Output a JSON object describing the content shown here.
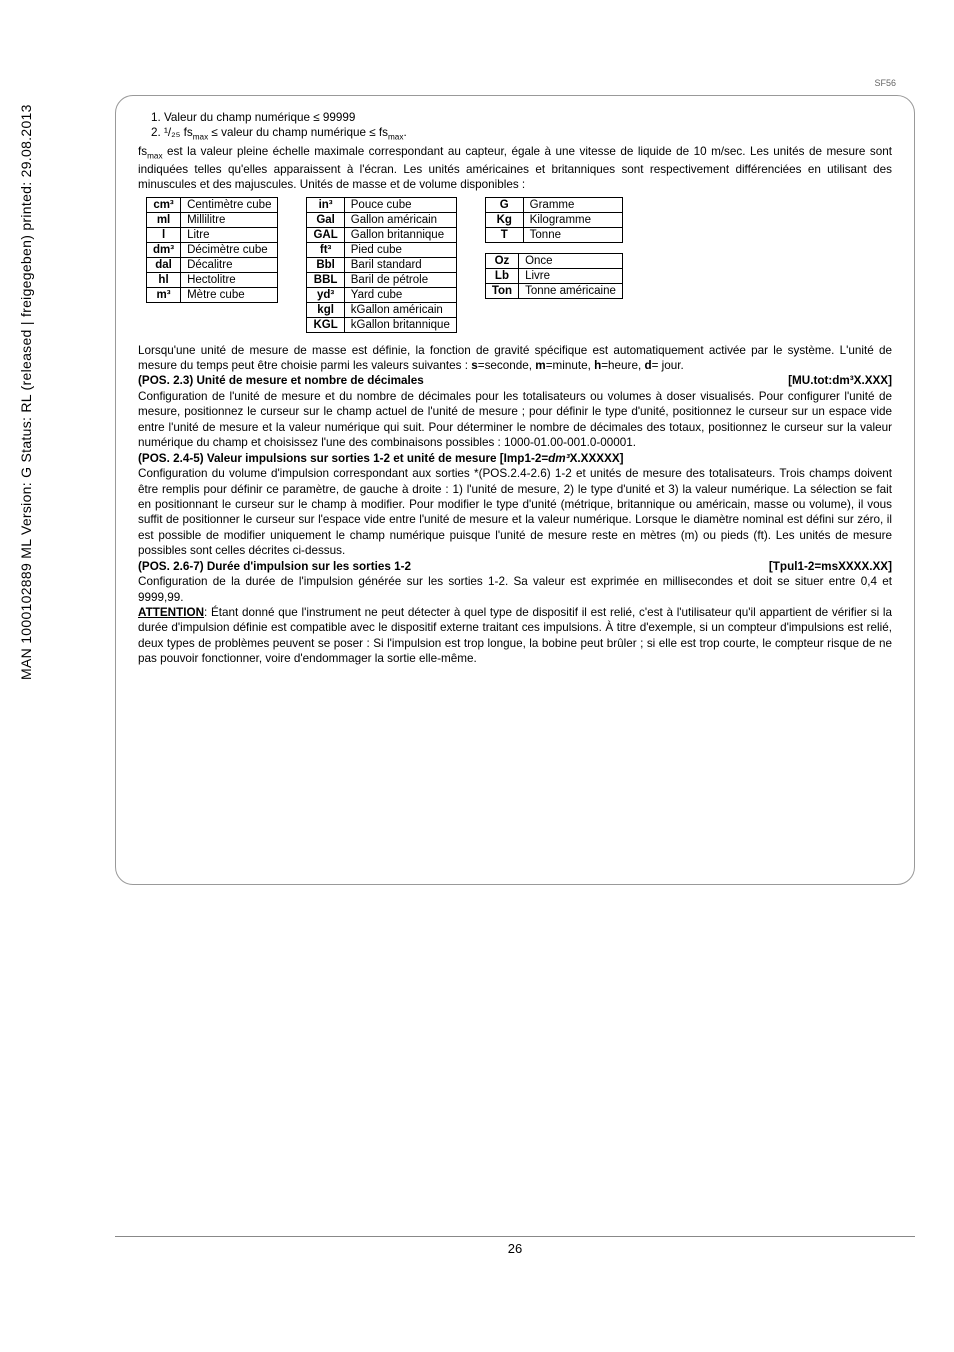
{
  "sidebar": "MAN 1000102889 ML Version: G  Status: RL (released | freigegeben)  printed: 29.08.2013",
  "header_code": "SF56",
  "list": {
    "i1": "Valeur du champ numérique ≤ 99999",
    "i2_pre": "¹/₂₅ fs",
    "i2_sub1": "max",
    "i2_mid": " ≤ valeur du champ numérique ≤ fs",
    "i2_sub2": "max",
    "i2_post": "."
  },
  "p1a": "fs",
  "p1a_sub": "max",
  "p1b": " est la valeur pleine échelle maximale correspondant au capteur, égale à une vitesse de liquide de 10 m/sec. Les unités de mesure sont indiquées telles qu'elles apparaissent à l'écran. Les unités américaines et britanniques sont respectivement différenciées en utilisant des minuscules et des majuscules. Unités de masse et de volume disponibles :",
  "t1": {
    "r0a": "cm³",
    "r0b": "Centimètre cube",
    "r1a": "ml",
    "r1b": "Millilitre",
    "r2a": "l",
    "r2b": "Litre",
    "r3a": "dm³",
    "r3b": "Décimètre cube",
    "r4a": "dal",
    "r4b": "Décalitre",
    "r5a": "hl",
    "r5b": "Hectolitre",
    "r6a": "m³",
    "r6b": "Mètre cube"
  },
  "t2": {
    "r0a": "in³",
    "r0b": "Pouce cube",
    "r1a": "Gal",
    "r1b": "Gallon américain",
    "r2a": "GAL",
    "r2b": "Gallon britannique",
    "r3a": "ft³",
    "r3b": "Pied cube",
    "r4a": "Bbl",
    "r4b": "Baril standard",
    "r5a": "BBL",
    "r5b": "Baril de pétrole",
    "r6a": "yd³",
    "r6b": "Yard cube",
    "r7a": "kgl",
    "r7b": "kGallon américain",
    "r8a": "KGL",
    "r8b": "kGallon britannique"
  },
  "t3": {
    "r0a": "G",
    "r0b": "Gramme",
    "r1a": "Kg",
    "r1b": "Kilogramme",
    "r2a": "T",
    "r2b": "Tonne"
  },
  "t4": {
    "r0a": "Oz",
    "r0b": "Once",
    "r1a": "Lb",
    "r1b": "Livre",
    "r2a": "Ton",
    "r2b": "Tonne américaine"
  },
  "p2": "Lorsqu'une unité de mesure de masse est définie, la fonction de gravité spécifique est automatiquement activée par le système. L'unité de mesure du temps peut être choisie parmi les valeurs suivantes : ",
  "p2b": "s",
  "p2c": "=seconde, ",
  "p2d": "m",
  "p2e": "=minute, ",
  "p2f": "h",
  "p2g": "=heure, ",
  "p2h": "d",
  "p2i": "= jour.",
  "s23_title": "(POS. 2.3) Unité de mesure et nombre de décimales",
  "s23_tag": "[MU.tot:dm³X.XXX]",
  "s23_body": "Configuration de l'unité de mesure et du nombre de décimales pour les totalisateurs ou volumes à doser visualisés. Pour configurer l'unité de mesure, positionnez le curseur sur le champ actuel de l'unité de mesure ; pour définir le type d'unité, positionnez le curseur sur un espace vide entre l'unité de mesure et la valeur numérique qui suit. Pour déterminer le nombre de décimales des totaux, positionnez le curseur sur la valeur numérique du champ et choisissez l'une des combinaisons possibles : 1000-01.00-001.0-00001.",
  "s24_title_a": "(POS. 2.4-5) Valeur impulsions sur sorties 1-2 et unité de mesure  [Imp1-2=",
  "s24_title_i": "dm³",
  "s24_title_b": "X.XXXXX]",
  "s24_body": "Configuration du volume d'impulsion correspondant aux sorties *(POS.2.4-2.6) 1-2 et unités de mesure des totalisateurs. Trois champs doivent être remplis pour définir ce paramètre, de gauche à droite : 1) l'unité de mesure, 2) le type d'unité et 3) la valeur numérique. La sélection se fait en positionnant le curseur sur le champ à modifier. Pour modifier le type d'unité (métrique, britannique ou américain, masse ou volume), il vous suffit de positionner le curseur sur l'espace vide entre l'unité de mesure et la valeur numérique. Lorsque le diamètre nominal est défini sur zéro, il est possible de modifier uniquement le champ numérique puisque l'unité de mesure reste en mètres (m) ou pieds (ft). Les unités de mesure possibles sont celles décrites ci-dessus.",
  "s26_title": "(POS. 2.6-7) Durée d'impulsion sur les sorties 1-2",
  "s26_tag": "[Tpul1-2=msXXXX.XX]",
  "s26_body": "Configuration de la durée de l'impulsion générée sur les sorties 1-2. Sa valeur est exprimée en millisecondes et doit se situer entre 0,4 et 9999,99.",
  "attn_label": "ATTENTION",
  "attn_body": ": Étant donné que l'instrument ne peut détecter à quel type de dispositif il est relié, c'est à l'utilisateur qu'il appartient de vérifier si la durée d'impulsion définie est compatible avec le dispositif externe traitant ces impulsions. À titre d'exemple, si un compteur d'impulsions est relié, deux types de problèmes peuvent se poser : Si l'impulsion est trop longue, la bobine peut brûler ; si elle est trop courte, le compteur risque de ne pas pouvoir fonctionner, voire d'endommager la sortie elle-même.",
  "page_num": "26"
}
